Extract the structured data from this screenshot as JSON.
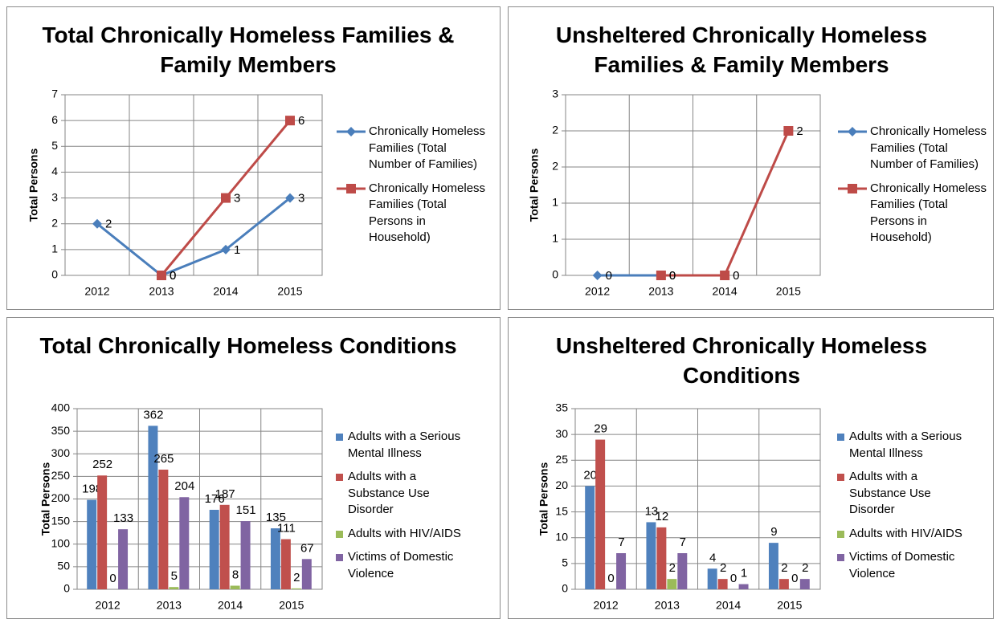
{
  "chart_data": [
    {
      "type": "line",
      "title": "Total Chronically Homeless Families & Family Members",
      "y_label": "Total Persons",
      "categories": [
        "2012",
        "2013",
        "2014",
        "2015"
      ],
      "series": [
        {
          "name": "Chronically Homeless Families (Total Number of Families)",
          "color": "#4a7ebb",
          "marker": "diamond",
          "values": [
            2,
            0,
            1,
            3
          ]
        },
        {
          "name": "Chronically Homeless Families (Total Persons in Household)",
          "color": "#be4b48",
          "marker": "square",
          "values": [
            null,
            0,
            3,
            6
          ]
        }
      ],
      "ylim": [
        0,
        7
      ],
      "yticks": [
        0,
        1,
        2,
        3,
        4,
        5,
        6,
        7
      ],
      "grid": true
    },
    {
      "type": "line",
      "title": "Unsheltered Chronically Homeless Families & Family Members",
      "y_label": "Total Persons",
      "categories": [
        "2012",
        "2013",
        "2014",
        "2015"
      ],
      "series": [
        {
          "name": "Chronically Homeless Families (Total Number of Families)",
          "color": "#4a7ebb",
          "marker": "diamond",
          "values": [
            0,
            0,
            null,
            null
          ]
        },
        {
          "name": "Chronically Homeless Families (Total Persons in Household)",
          "color": "#be4b48",
          "marker": "square",
          "values": [
            null,
            0,
            0,
            2
          ]
        }
      ],
      "ylim": [
        0,
        2.5
      ],
      "yticks": [
        0,
        {
          "value": 0.5,
          "label": "1"
        },
        1,
        {
          "value": 1.5,
          "label": "2"
        },
        2,
        {
          "value": 2.5,
          "label": "3"
        }
      ],
      "grid": true
    },
    {
      "type": "bar",
      "title": "Total Chronically Homeless Conditions",
      "y_label": "Total Persons",
      "categories": [
        "2012",
        "2013",
        "2014",
        "2015"
      ],
      "series": [
        {
          "name": "Adults with a Serious Mental Illness",
          "color": "#4f81bd",
          "values": [
            198,
            362,
            176,
            135
          ]
        },
        {
          "name": "Adults with a Substance Use Disorder",
          "color": "#c0504d",
          "values": [
            252,
            265,
            187,
            111
          ]
        },
        {
          "name": "Adults with HIV/AIDS",
          "color": "#9bbb59",
          "values": [
            0,
            5,
            8,
            2
          ]
        },
        {
          "name": "Victims of Domestic Violence",
          "color": "#8064a2",
          "values": [
            133,
            204,
            151,
            67
          ]
        }
      ],
      "ylim": [
        0,
        400
      ],
      "yticks": [
        0,
        50,
        100,
        150,
        200,
        250,
        300,
        350,
        400
      ],
      "grid": true
    },
    {
      "type": "bar",
      "title": "Unsheltered Chronically Homeless Conditions",
      "y_label": "Total Persons",
      "categories": [
        "2012",
        "2013",
        "2014",
        "2015"
      ],
      "series": [
        {
          "name": "Adults with a Serious Mental Illness",
          "color": "#4f81bd",
          "values": [
            20,
            13,
            4,
            9
          ]
        },
        {
          "name": "Adults with a Substance Use Disorder",
          "color": "#c0504d",
          "values": [
            29,
            12,
            2,
            2
          ]
        },
        {
          "name": "Adults with HIV/AIDS",
          "color": "#9bbb59",
          "values": [
            0,
            2,
            0,
            0
          ]
        },
        {
          "name": "Victims of Domestic Violence",
          "color": "#8064a2",
          "values": [
            7,
            7,
            1,
            2
          ]
        }
      ],
      "ylim": [
        0,
        35
      ],
      "yticks": [
        0,
        5,
        10,
        15,
        20,
        25,
        30,
        35
      ],
      "grid": true
    }
  ]
}
